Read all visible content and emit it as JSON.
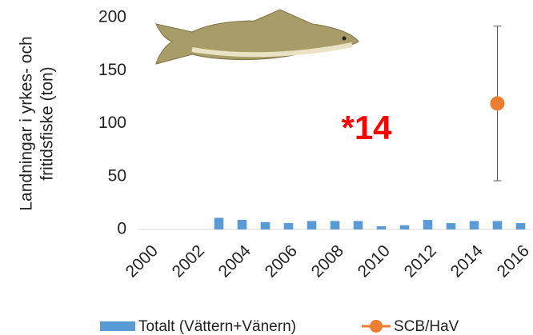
{
  "chart_data": {
    "type": "bar",
    "ylabel": [
      "Landningar i yrkes- och",
      "fritidsfiske (ton)"
    ],
    "categories": [
      "2000",
      null,
      "2002",
      null,
      "2004",
      null,
      "2006",
      null,
      "2008",
      null,
      "2010",
      null,
      "2012",
      null,
      "2014",
      null,
      "2016"
    ],
    "series": [
      {
        "name": "Totalt (Vättern+Vänern)",
        "type": "bar",
        "color": "#5b9bd5",
        "values": [
          null,
          null,
          null,
          11,
          9,
          7,
          6,
          8,
          8,
          8,
          3,
          4,
          9,
          6,
          8,
          8,
          6
        ]
      },
      {
        "name": "SCB/HaV",
        "type": "scatter",
        "color": "#ed7d31",
        "values": [
          null,
          null,
          null,
          null,
          null,
          null,
          null,
          null,
          null,
          null,
          null,
          null,
          null,
          null,
          null,
          119,
          null
        ],
        "errors": [
          null,
          null,
          null,
          null,
          null,
          null,
          null,
          null,
          null,
          null,
          null,
          null,
          null,
          null,
          null,
          73,
          null
        ]
      }
    ],
    "annotation": "*14",
    "ylim": [
      0,
      200
    ],
    "yticks": [
      0,
      50,
      100,
      150,
      200
    ]
  }
}
